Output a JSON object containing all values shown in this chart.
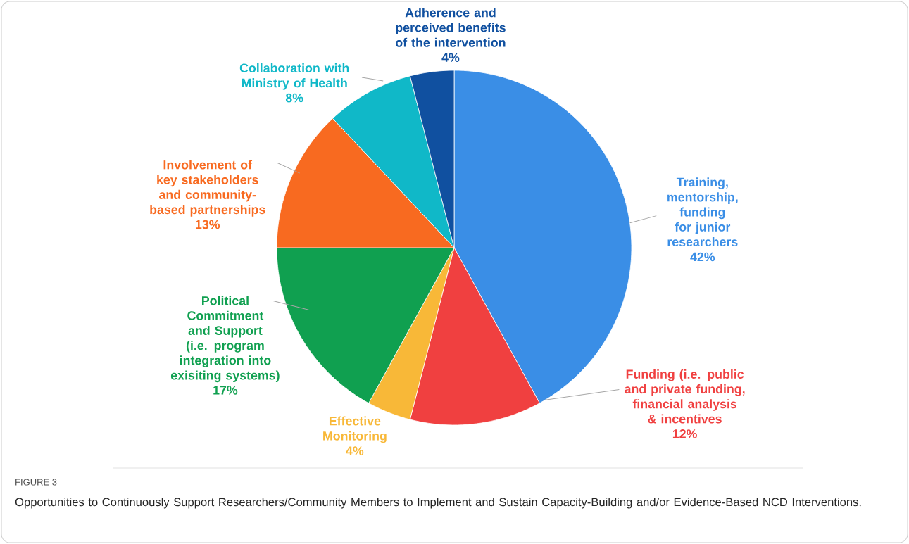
{
  "chart_data": {
    "type": "pie",
    "title": "FIGURE 3",
    "subtitle": "Opportunities to Continuously Support Researchers/Community Members to Implement and Sustain Capacity-Building and/or Evidence-Based NCD Interventions.",
    "categories": [
      "Training, mentorship, funding for junior researchers",
      "Funding (i.e. public and private funding, financial analysis & incentives",
      "Effective Monitoring",
      "Political Commitment and Support (i.e. program integration into exisiting systems)",
      "Involvement of key stakeholders and community-based partnerships",
      "Collaboration with Ministry of Health",
      "Adherence and perceived benefits of the intervention"
    ],
    "values": [
      42,
      12,
      4,
      17,
      13,
      8,
      4
    ],
    "value_labels": [
      "42%",
      "12%",
      "4%",
      "17%",
      "13%",
      "8%",
      "4%"
    ],
    "colors": [
      "#3a8ee6",
      "#f04040",
      "#f8b838",
      "#10a050",
      "#f86a20",
      "#10b8c8",
      "#1050a0"
    ]
  }
}
